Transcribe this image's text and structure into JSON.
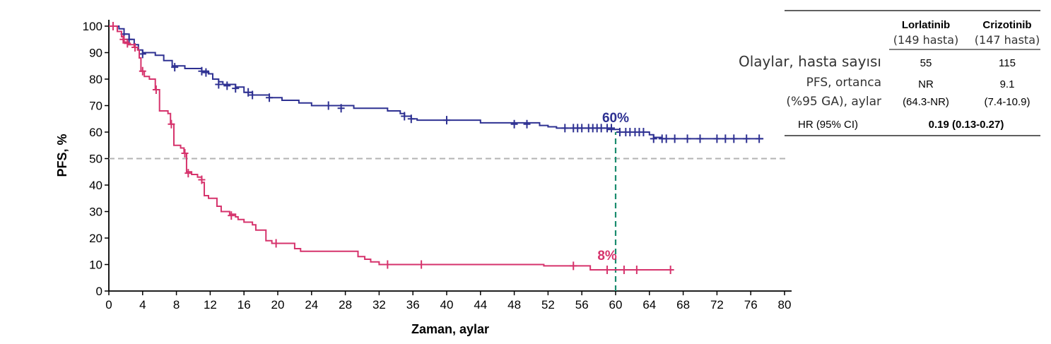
{
  "chart_data": {
    "type": "line",
    "subtype": "kaplan-meier",
    "title": "",
    "xlabel": "Zaman, aylar",
    "ylabel": "PFS, %",
    "xlim": [
      0,
      80
    ],
    "ylim": [
      0,
      100
    ],
    "xticks": [
      0,
      4,
      8,
      12,
      16,
      20,
      24,
      28,
      32,
      36,
      40,
      44,
      48,
      52,
      56,
      60,
      64,
      68,
      72,
      76,
      80
    ],
    "yticks": [
      0,
      10,
      20,
      30,
      40,
      50,
      60,
      70,
      80,
      90,
      100
    ],
    "grid": false,
    "reference_lines": [
      {
        "orientation": "horizontal",
        "y": 50,
        "style": "dashed",
        "color": "#b3b3b3"
      },
      {
        "orientation": "vertical",
        "x": 60,
        "y_to": 60,
        "style": "dashed",
        "color": "#1a8c6e"
      }
    ],
    "series": [
      {
        "name": "Lorlatinib",
        "color": "#2e3192",
        "label": "60%",
        "label_at": [
          60,
          60
        ],
        "steps": [
          [
            0,
            100
          ],
          [
            1.2,
            99
          ],
          [
            1.8,
            97
          ],
          [
            2.4,
            95
          ],
          [
            3,
            93
          ],
          [
            3.5,
            91
          ],
          [
            4,
            90
          ],
          [
            5.5,
            89
          ],
          [
            6.5,
            87
          ],
          [
            7.5,
            85
          ],
          [
            9,
            84
          ],
          [
            11,
            83
          ],
          [
            11.8,
            82
          ],
          [
            12.3,
            80
          ],
          [
            13,
            79
          ],
          [
            13.5,
            78
          ],
          [
            15,
            77
          ],
          [
            16,
            75
          ],
          [
            17,
            74
          ],
          [
            19,
            73
          ],
          [
            20.5,
            72
          ],
          [
            22.5,
            71
          ],
          [
            24,
            70
          ],
          [
            29,
            69
          ],
          [
            33,
            68
          ],
          [
            34.5,
            67
          ],
          [
            35,
            66
          ],
          [
            35.8,
            65
          ],
          [
            36.5,
            64.5
          ],
          [
            44,
            63.5
          ],
          [
            51,
            62.5
          ],
          [
            52,
            62
          ],
          [
            53,
            61.5
          ],
          [
            59,
            61
          ],
          [
            60.5,
            60
          ],
          [
            64,
            59
          ],
          [
            64.5,
            58
          ],
          [
            65.5,
            57.5
          ],
          [
            77.5,
            57.5
          ]
        ],
        "censor": [
          [
            1.8,
            97
          ],
          [
            2.4,
            95
          ],
          [
            4,
            89.5
          ],
          [
            7.8,
            84.5
          ],
          [
            11,
            83
          ],
          [
            11.5,
            82.5
          ],
          [
            13,
            78
          ],
          [
            14,
            77.5
          ],
          [
            15,
            76.5
          ],
          [
            16.5,
            75
          ],
          [
            17,
            74
          ],
          [
            19,
            73
          ],
          [
            26,
            70
          ],
          [
            27.5,
            69
          ],
          [
            35,
            66
          ],
          [
            35.8,
            65
          ],
          [
            40,
            64.5
          ],
          [
            48,
            63
          ],
          [
            49.5,
            63
          ],
          [
            54,
            61.5
          ],
          [
            55,
            61.5
          ],
          [
            55.5,
            61.5
          ],
          [
            56,
            61.5
          ],
          [
            56.8,
            61.5
          ],
          [
            57.3,
            61.5
          ],
          [
            57.8,
            61.5
          ],
          [
            58.3,
            61.5
          ],
          [
            59,
            61.5
          ],
          [
            59.5,
            61.5
          ],
          [
            60.5,
            60
          ],
          [
            61.2,
            60
          ],
          [
            61.7,
            60
          ],
          [
            62.3,
            60
          ],
          [
            62.8,
            60
          ],
          [
            63.3,
            60
          ],
          [
            64.5,
            57.5
          ],
          [
            65.5,
            57.5
          ],
          [
            66,
            57.5
          ],
          [
            67,
            57.5
          ],
          [
            68.5,
            57.5
          ],
          [
            70,
            57.5
          ],
          [
            72,
            57.5
          ],
          [
            73,
            57.5
          ],
          [
            74,
            57.5
          ],
          [
            75.5,
            57.5
          ],
          [
            77,
            57.5
          ]
        ]
      },
      {
        "name": "Crizotinib",
        "color": "#d6336c",
        "label": "8%",
        "label_at": [
          59,
          8
        ],
        "steps": [
          [
            0,
            100
          ],
          [
            1,
            98
          ],
          [
            1.5,
            96
          ],
          [
            1.8,
            94
          ],
          [
            2.3,
            93
          ],
          [
            3,
            92
          ],
          [
            3.4,
            91
          ],
          [
            3.6,
            88
          ],
          [
            3.8,
            83
          ],
          [
            4.2,
            81
          ],
          [
            4.8,
            80
          ],
          [
            5.5,
            76
          ],
          [
            6,
            68
          ],
          [
            7,
            67
          ],
          [
            7.3,
            63
          ],
          [
            7.7,
            55
          ],
          [
            8.5,
            54
          ],
          [
            8.9,
            52
          ],
          [
            9.2,
            45
          ],
          [
            9.8,
            44
          ],
          [
            10.5,
            43
          ],
          [
            11,
            41
          ],
          [
            11.3,
            36
          ],
          [
            11.8,
            35
          ],
          [
            12.8,
            32
          ],
          [
            13.3,
            30
          ],
          [
            14.3,
            29
          ],
          [
            15,
            28
          ],
          [
            15.3,
            27
          ],
          [
            16,
            26
          ],
          [
            17,
            25
          ],
          [
            17.4,
            23
          ],
          [
            18.6,
            19
          ],
          [
            19.3,
            18
          ],
          [
            22,
            16
          ],
          [
            22.7,
            15
          ],
          [
            29.5,
            13
          ],
          [
            30.3,
            12
          ],
          [
            31,
            11
          ],
          [
            32,
            10
          ],
          [
            51.5,
            9.5
          ],
          [
            56,
            9.5
          ],
          [
            57,
            8
          ],
          [
            66.5,
            8
          ]
        ],
        "censor": [
          [
            0.5,
            100
          ],
          [
            1.7,
            95
          ],
          [
            2.2,
            93.5
          ],
          [
            3.1,
            92
          ],
          [
            4,
            83
          ],
          [
            5.6,
            76
          ],
          [
            7.4,
            63
          ],
          [
            9,
            52
          ],
          [
            9.4,
            44.5
          ],
          [
            11,
            42
          ],
          [
            14.5,
            28.5
          ],
          [
            19.8,
            18
          ],
          [
            33,
            10
          ],
          [
            37,
            10
          ],
          [
            55,
            9.5
          ],
          [
            59,
            8
          ],
          [
            61,
            8
          ],
          [
            62.5,
            8
          ],
          [
            66.5,
            8
          ]
        ]
      }
    ],
    "table": {
      "columns": [
        {
          "name": "Lorlatinib",
          "sub": "(149 hasta)"
        },
        {
          "name": "Crizotinib",
          "sub": "(147 hasta)"
        }
      ],
      "rows": [
        {
          "label": [
            "Olaylar, hasta sayısı"
          ],
          "values": [
            [
              "55"
            ],
            [
              "115"
            ]
          ]
        },
        {
          "label": [
            "PFS, ortanca",
            "(%95 GA), aylar"
          ],
          "values": [
            [
              "NR",
              "(64.3-NR)"
            ],
            [
              "9.1",
              "(7.4-10.9)"
            ]
          ]
        },
        {
          "label": [
            "HR (95% CI)"
          ],
          "merged_value": "0.19 (0.13-0.27)"
        }
      ]
    }
  }
}
